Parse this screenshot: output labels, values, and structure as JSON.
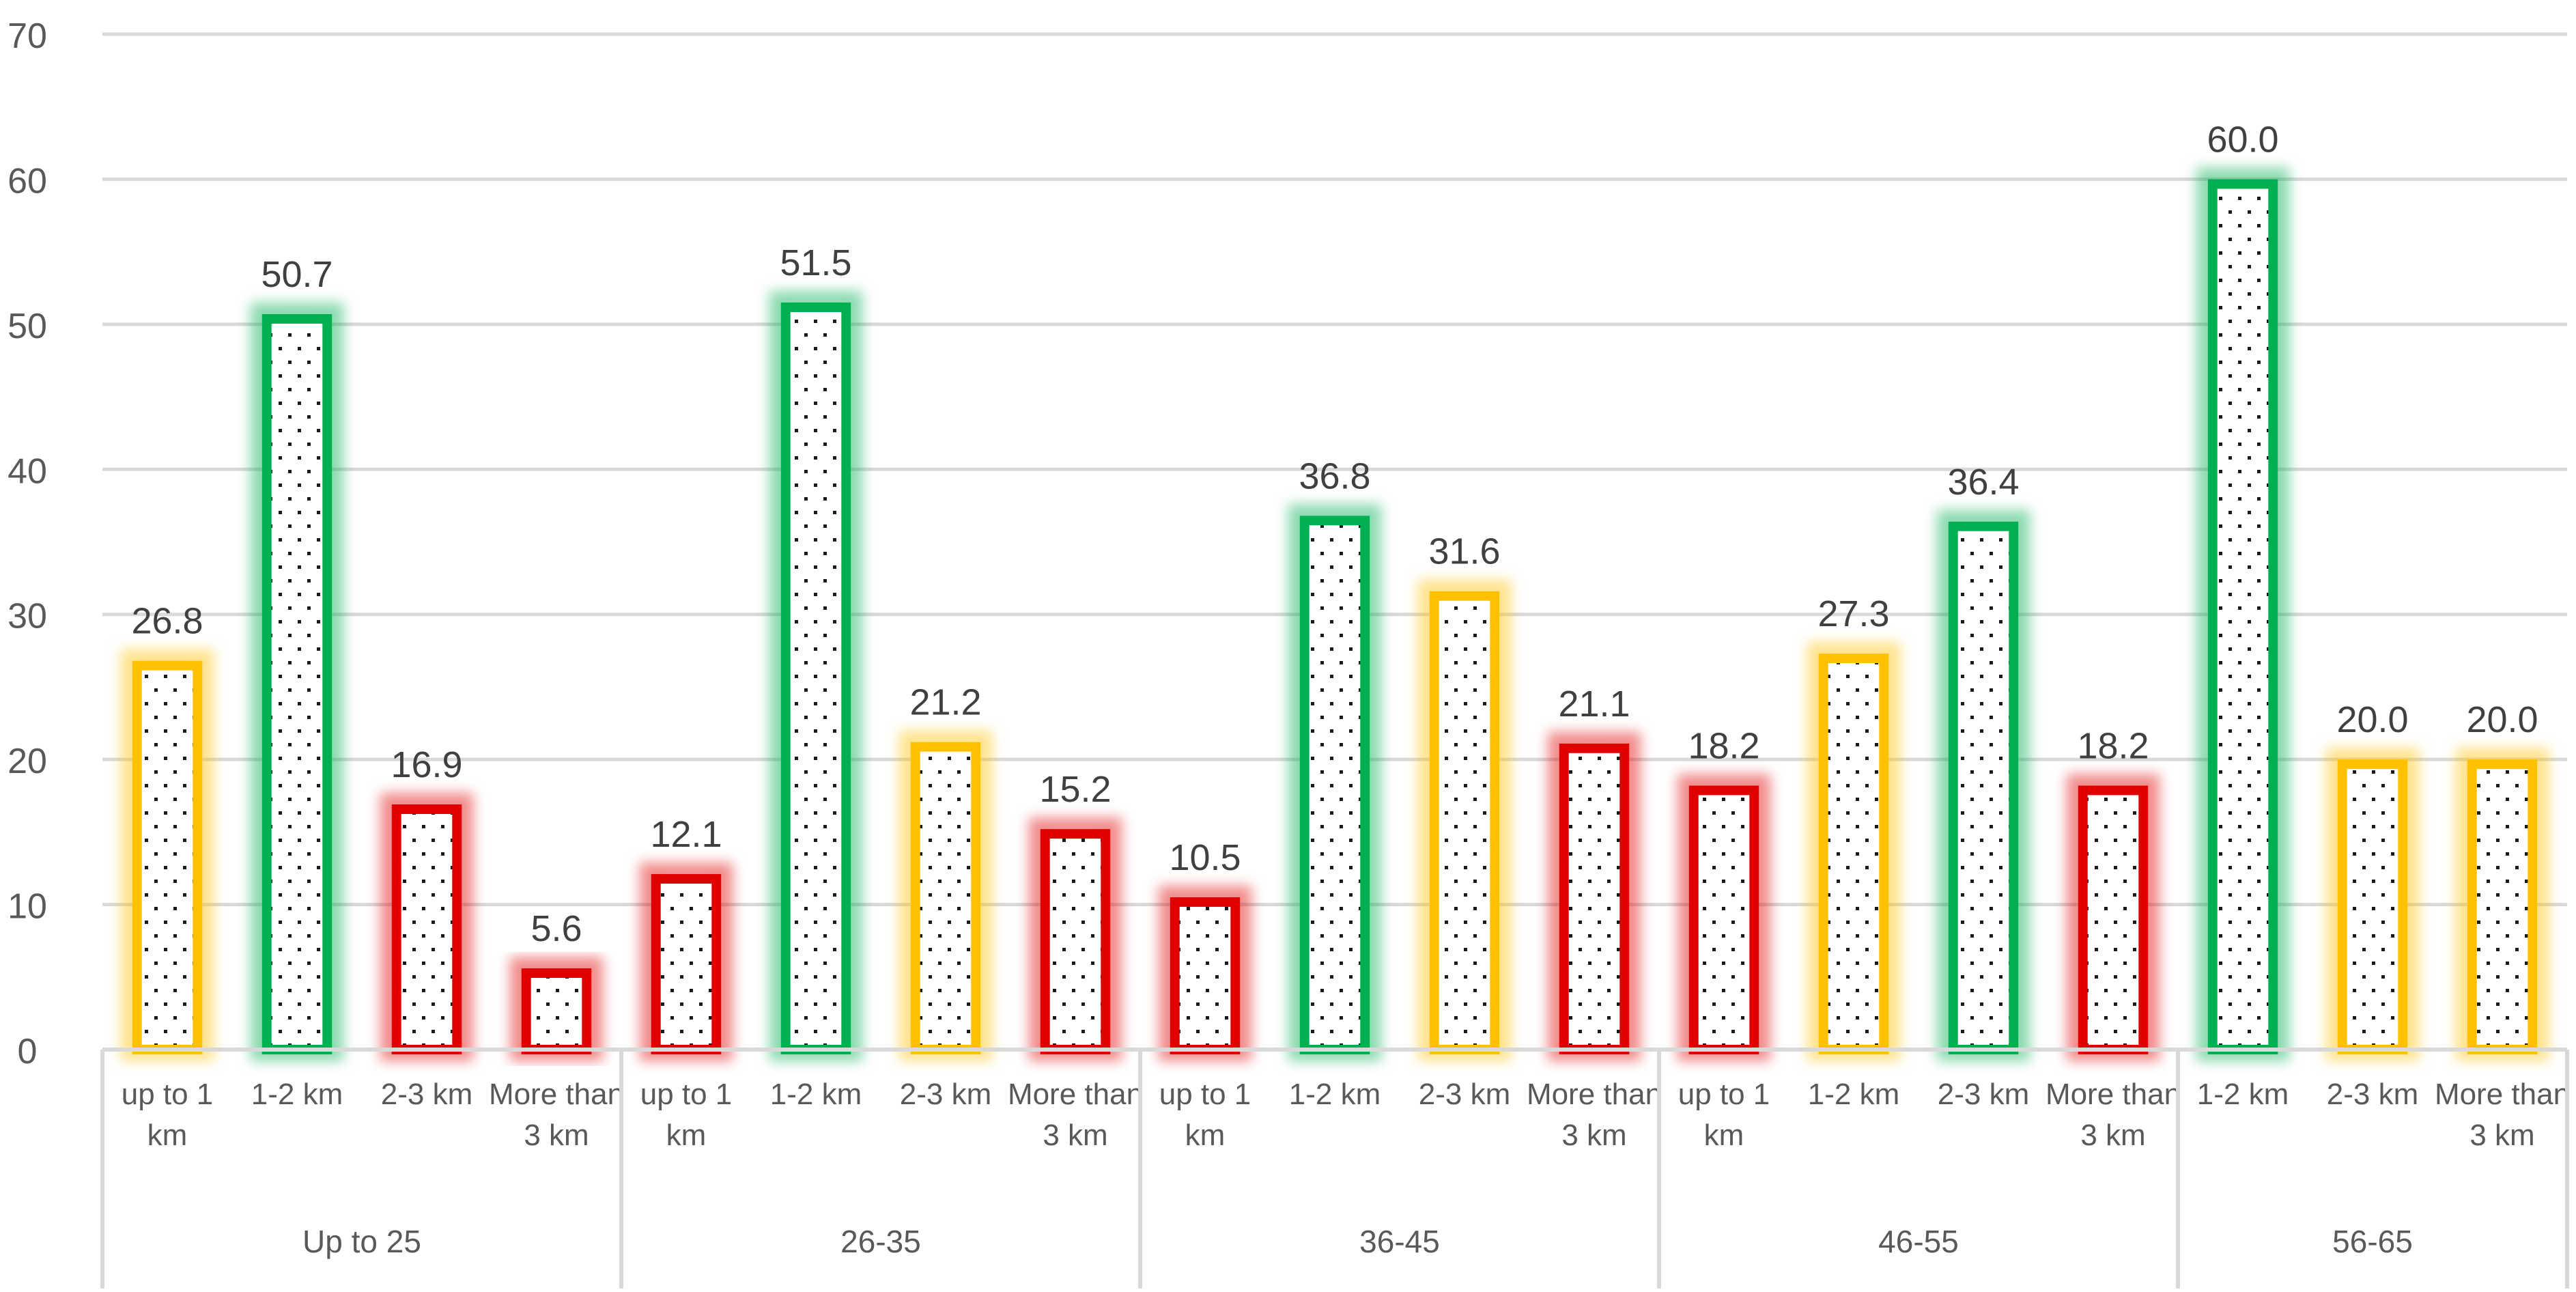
{
  "chart_data": {
    "type": "bar",
    "title": "",
    "xlabel": "",
    "ylabel": "",
    "ylim": [
      0,
      70
    ],
    "yticks": [
      0,
      10,
      20,
      30,
      40,
      50,
      60,
      70
    ],
    "grid": true,
    "legend": "none",
    "value_decimals": 1,
    "groups": [
      {
        "label": "Up to 25",
        "bars": [
          {
            "category": "up to 1 km",
            "value": 26.8,
            "color": "#FFC000"
          },
          {
            "category": "1-2 km",
            "value": 50.7,
            "color": "#00B050"
          },
          {
            "category": "2-3 km",
            "value": 16.9,
            "color": "#E00000"
          },
          {
            "category": "More than 3 km",
            "value": 5.6,
            "color": "#E00000"
          }
        ]
      },
      {
        "label": "26-35",
        "bars": [
          {
            "category": "up to 1 km",
            "value": 12.1,
            "color": "#E00000"
          },
          {
            "category": "1-2 km",
            "value": 51.5,
            "color": "#00B050"
          },
          {
            "category": "2-3 km",
            "value": 21.2,
            "color": "#FFC000"
          },
          {
            "category": "More than 3 km",
            "value": 15.2,
            "color": "#E00000"
          }
        ]
      },
      {
        "label": "36-45",
        "bars": [
          {
            "category": "up to 1 km",
            "value": 10.5,
            "color": "#E00000"
          },
          {
            "category": "1-2 km",
            "value": 36.8,
            "color": "#00B050"
          },
          {
            "category": "2-3 km",
            "value": 31.6,
            "color": "#FFC000"
          },
          {
            "category": "More than 3 km",
            "value": 21.1,
            "color": "#E00000"
          }
        ]
      },
      {
        "label": "46-55",
        "bars": [
          {
            "category": "up to 1 km",
            "value": 18.2,
            "color": "#E00000"
          },
          {
            "category": "1-2 km",
            "value": 27.3,
            "color": "#FFC000"
          },
          {
            "category": "2-3 km",
            "value": 36.4,
            "color": "#00B050"
          },
          {
            "category": "More than 3 km",
            "value": 18.2,
            "color": "#E00000"
          }
        ]
      },
      {
        "label": "56-65",
        "bars": [
          {
            "category": "1-2 km",
            "value": 60.0,
            "color": "#00B050"
          },
          {
            "category": "2-3 km",
            "value": 20.0,
            "color": "#FFC000"
          },
          {
            "category": "More than 3 km",
            "value": 20.0,
            "color": "#FFC000"
          }
        ]
      }
    ]
  }
}
